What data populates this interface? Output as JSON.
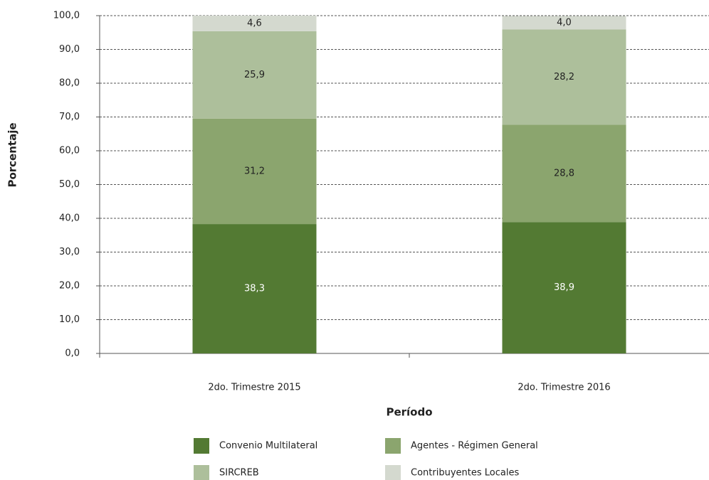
{
  "chart_data": {
    "type": "stacked-bar",
    "categories": [
      "2do. Trimestre 2015",
      "2do. Trimestre 2016"
    ],
    "series": [
      {
        "name": "Convenio Multilateral",
        "color": "#537a33",
        "values": [
          38.3,
          38.9
        ],
        "value_labels": [
          "38,3",
          "38,9"
        ]
      },
      {
        "name": "Agentes - Régimen General",
        "color": "#8ba56e",
        "values": [
          31.2,
          28.8
        ],
        "value_labels": [
          "31,2",
          "28,8"
        ]
      },
      {
        "name": "SIRCREB",
        "color": "#adbf9b",
        "values": [
          25.9,
          28.2
        ],
        "value_labels": [
          "25,9",
          "28,2"
        ]
      },
      {
        "name": "Contribuyentes Locales",
        "color": "#d4d9cf",
        "values": [
          4.6,
          4.0
        ],
        "value_labels": [
          "4,6",
          "4,0"
        ]
      }
    ],
    "xlabel": "Período",
    "ylabel": "Porcentaje",
    "ylim": [
      0,
      100
    ],
    "yticks": [
      {
        "value": 0,
        "label": "0,0"
      },
      {
        "value": 10,
        "label": "10,0"
      },
      {
        "value": 20,
        "label": "20,0"
      },
      {
        "value": 30,
        "label": "30,0"
      },
      {
        "value": 40,
        "label": "40,0"
      },
      {
        "value": 50,
        "label": "50,0"
      },
      {
        "value": 60,
        "label": "60,0"
      },
      {
        "value": 70,
        "label": "70,0"
      },
      {
        "value": 80,
        "label": "80,0"
      },
      {
        "value": 90,
        "label": "90,0"
      },
      {
        "value": 100,
        "label": "100,0"
      }
    ],
    "grid": true,
    "legend": "bottom"
  }
}
